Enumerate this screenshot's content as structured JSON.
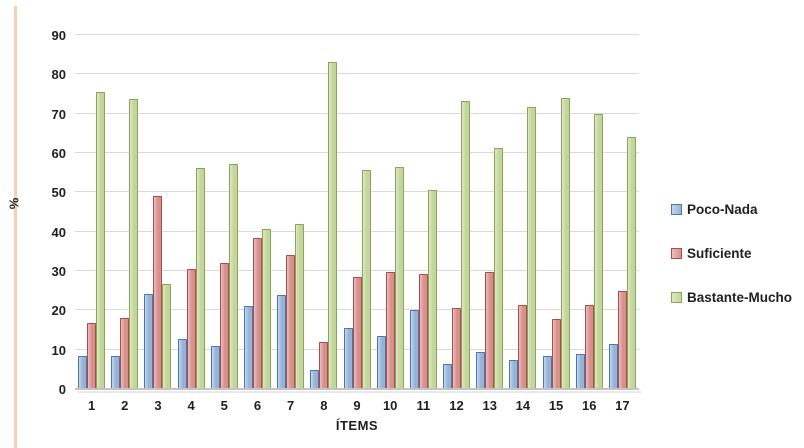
{
  "chart_data": {
    "type": "bar",
    "title": "",
    "xlabel": "ÍTEMS",
    "ylabel": "%",
    "ylim": [
      0,
      90
    ],
    "ytick_step": 10,
    "grid": true,
    "legend_position": "right",
    "categories": [
      "1",
      "2",
      "3",
      "4",
      "5",
      "6",
      "7",
      "8",
      "9",
      "10",
      "11",
      "12",
      "13",
      "14",
      "15",
      "16",
      "17"
    ],
    "series": [
      {
        "name": "Poco-Nada",
        "values": [
          8.3,
          8.4,
          24.2,
          12.8,
          11.0,
          21.1,
          23.8,
          4.9,
          15.6,
          13.5,
          20.1,
          6.4,
          9.5,
          7.4,
          8.3,
          9.0,
          11.5
        ],
        "fill": "#95b3d7",
        "fill_light": "#c6d6ea",
        "border": "#4a76ae"
      },
      {
        "name": "Suficiente",
        "values": [
          16.8,
          18.0,
          49.0,
          30.6,
          32.0,
          38.5,
          34.0,
          11.9,
          28.6,
          29.7,
          29.3,
          20.5,
          29.7,
          21.3,
          17.8,
          21.3,
          24.9
        ],
        "fill": "#d6918f",
        "fill_light": "#e9bebc",
        "border": "#ae4a47"
      },
      {
        "name": "Bastante-Mucho",
        "values": [
          75.5,
          73.8,
          26.8,
          56.2,
          57.2,
          40.7,
          42.0,
          83.2,
          55.8,
          56.5,
          50.7,
          73.2,
          61.4,
          71.8,
          74.0,
          69.9,
          64.1
        ],
        "fill": "#c2d69b",
        "fill_light": "#dde7c5",
        "border": "#89a654"
      }
    ]
  },
  "axes": {
    "y_title": "%",
    "x_title": "ÍTEMS",
    "y_ticks": [
      "0",
      "10",
      "20",
      "30",
      "40",
      "50",
      "60",
      "70",
      "80",
      "90"
    ]
  },
  "legend": {
    "items": [
      {
        "label": "Poco-Nada"
      },
      {
        "label": "Suficiente"
      },
      {
        "label": "Bastante-Mucho"
      }
    ]
  },
  "colors": {
    "accent_strip": "#f6d0b4",
    "gridline": "#d9d9d9",
    "axis_line": "#c3c3c3",
    "text": "#1f1f1f",
    "background": "#ffffff"
  }
}
